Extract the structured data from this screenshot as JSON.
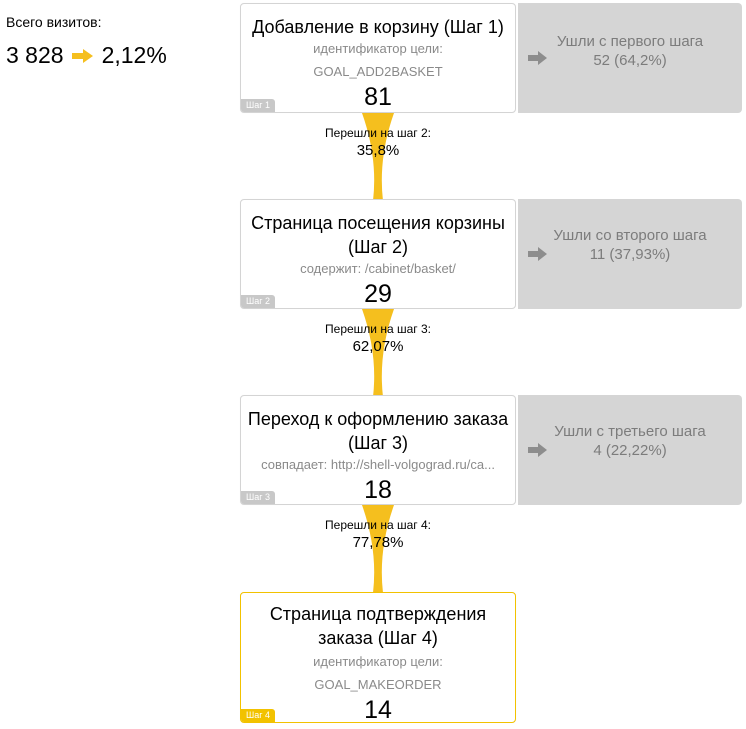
{
  "summary": {
    "label": "Всего визитов:",
    "visits": "3 828",
    "conversion": "2,12%"
  },
  "colors": {
    "accent": "#f5bf1e",
    "exit_bg": "#d5d5d5",
    "exit_text": "#7c7c7c",
    "badge_default": "#c8c8c8",
    "badge_last": "#f2c200"
  },
  "steps": [
    {
      "title": "Добавление в корзину (Шаг 1)",
      "cond_label": "идентификатор цели:",
      "cond_value": "GOAL_ADD2BASKET",
      "count": "81",
      "badge": "Шаг 1"
    },
    {
      "title": "Страница посещения корзины (Шаг 2)",
      "cond_label": "содержит: /cabinet/basket/",
      "cond_value": "",
      "count": "29",
      "badge": "Шаг 2"
    },
    {
      "title": "Переход к оформлению заказа (Шаг 3)",
      "cond_label": "совпадает: http://shell-volgograd.ru/ca...",
      "cond_value": "",
      "count": "18",
      "badge": "Шаг 3"
    },
    {
      "title": "Страница подтверждения заказа (Шаг 4)",
      "cond_label": "идентификатор цели:",
      "cond_value": "GOAL_MAKEORDER",
      "count": "14",
      "badge": "Шаг 4"
    }
  ],
  "exits": [
    {
      "title": "Ушли с первого шага",
      "value": "52 (64,2%)"
    },
    {
      "title": "Ушли со второго шага",
      "value": "11 (37,93%)"
    },
    {
      "title": "Ушли с третьего шага",
      "value": "4 (22,22%)"
    }
  ],
  "transitions": [
    {
      "label": "Перешли на шаг 2:",
      "percent": "35,8%"
    },
    {
      "label": "Перешли на шаг 3:",
      "percent": "62,07%"
    },
    {
      "label": "Перешли на шаг 4:",
      "percent": "77,78%"
    }
  ]
}
